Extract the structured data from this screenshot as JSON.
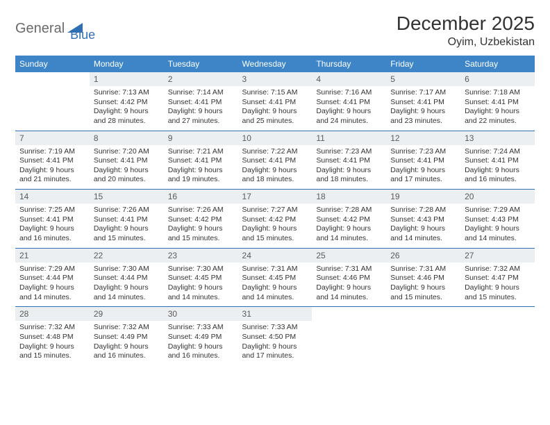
{
  "logo": {
    "text1": "General",
    "text2": "Blue"
  },
  "title": "December 2025",
  "location": "Oyim, Uzbekistan",
  "colors": {
    "header_bg": "#3d85c6",
    "header_text": "#ffffff",
    "daynum_bg": "#eceff1",
    "rule": "#2f6fb3",
    "body_text": "#333333"
  },
  "weekdays": [
    "Sunday",
    "Monday",
    "Tuesday",
    "Wednesday",
    "Thursday",
    "Friday",
    "Saturday"
  ],
  "weeks": [
    [
      {
        "n": "",
        "sr": "",
        "ss": "",
        "dl": ""
      },
      {
        "n": "1",
        "sr": "7:13 AM",
        "ss": "4:42 PM",
        "dl": "9 hours and 28 minutes."
      },
      {
        "n": "2",
        "sr": "7:14 AM",
        "ss": "4:41 PM",
        "dl": "9 hours and 27 minutes."
      },
      {
        "n": "3",
        "sr": "7:15 AM",
        "ss": "4:41 PM",
        "dl": "9 hours and 25 minutes."
      },
      {
        "n": "4",
        "sr": "7:16 AM",
        "ss": "4:41 PM",
        "dl": "9 hours and 24 minutes."
      },
      {
        "n": "5",
        "sr": "7:17 AM",
        "ss": "4:41 PM",
        "dl": "9 hours and 23 minutes."
      },
      {
        "n": "6",
        "sr": "7:18 AM",
        "ss": "4:41 PM",
        "dl": "9 hours and 22 minutes."
      }
    ],
    [
      {
        "n": "7",
        "sr": "7:19 AM",
        "ss": "4:41 PM",
        "dl": "9 hours and 21 minutes."
      },
      {
        "n": "8",
        "sr": "7:20 AM",
        "ss": "4:41 PM",
        "dl": "9 hours and 20 minutes."
      },
      {
        "n": "9",
        "sr": "7:21 AM",
        "ss": "4:41 PM",
        "dl": "9 hours and 19 minutes."
      },
      {
        "n": "10",
        "sr": "7:22 AM",
        "ss": "4:41 PM",
        "dl": "9 hours and 18 minutes."
      },
      {
        "n": "11",
        "sr": "7:23 AM",
        "ss": "4:41 PM",
        "dl": "9 hours and 18 minutes."
      },
      {
        "n": "12",
        "sr": "7:23 AM",
        "ss": "4:41 PM",
        "dl": "9 hours and 17 minutes."
      },
      {
        "n": "13",
        "sr": "7:24 AM",
        "ss": "4:41 PM",
        "dl": "9 hours and 16 minutes."
      }
    ],
    [
      {
        "n": "14",
        "sr": "7:25 AM",
        "ss": "4:41 PM",
        "dl": "9 hours and 16 minutes."
      },
      {
        "n": "15",
        "sr": "7:26 AM",
        "ss": "4:41 PM",
        "dl": "9 hours and 15 minutes."
      },
      {
        "n": "16",
        "sr": "7:26 AM",
        "ss": "4:42 PM",
        "dl": "9 hours and 15 minutes."
      },
      {
        "n": "17",
        "sr": "7:27 AM",
        "ss": "4:42 PM",
        "dl": "9 hours and 15 minutes."
      },
      {
        "n": "18",
        "sr": "7:28 AM",
        "ss": "4:42 PM",
        "dl": "9 hours and 14 minutes."
      },
      {
        "n": "19",
        "sr": "7:28 AM",
        "ss": "4:43 PM",
        "dl": "9 hours and 14 minutes."
      },
      {
        "n": "20",
        "sr": "7:29 AM",
        "ss": "4:43 PM",
        "dl": "9 hours and 14 minutes."
      }
    ],
    [
      {
        "n": "21",
        "sr": "7:29 AM",
        "ss": "4:44 PM",
        "dl": "9 hours and 14 minutes."
      },
      {
        "n": "22",
        "sr": "7:30 AM",
        "ss": "4:44 PM",
        "dl": "9 hours and 14 minutes."
      },
      {
        "n": "23",
        "sr": "7:30 AM",
        "ss": "4:45 PM",
        "dl": "9 hours and 14 minutes."
      },
      {
        "n": "24",
        "sr": "7:31 AM",
        "ss": "4:45 PM",
        "dl": "9 hours and 14 minutes."
      },
      {
        "n": "25",
        "sr": "7:31 AM",
        "ss": "4:46 PM",
        "dl": "9 hours and 14 minutes."
      },
      {
        "n": "26",
        "sr": "7:31 AM",
        "ss": "4:46 PM",
        "dl": "9 hours and 15 minutes."
      },
      {
        "n": "27",
        "sr": "7:32 AM",
        "ss": "4:47 PM",
        "dl": "9 hours and 15 minutes."
      }
    ],
    [
      {
        "n": "28",
        "sr": "7:32 AM",
        "ss": "4:48 PM",
        "dl": "9 hours and 15 minutes."
      },
      {
        "n": "29",
        "sr": "7:32 AM",
        "ss": "4:49 PM",
        "dl": "9 hours and 16 minutes."
      },
      {
        "n": "30",
        "sr": "7:33 AM",
        "ss": "4:49 PM",
        "dl": "9 hours and 16 minutes."
      },
      {
        "n": "31",
        "sr": "7:33 AM",
        "ss": "4:50 PM",
        "dl": "9 hours and 17 minutes."
      },
      {
        "n": "",
        "sr": "",
        "ss": "",
        "dl": ""
      },
      {
        "n": "",
        "sr": "",
        "ss": "",
        "dl": ""
      },
      {
        "n": "",
        "sr": "",
        "ss": "",
        "dl": ""
      }
    ]
  ],
  "labels": {
    "sunrise": "Sunrise: ",
    "sunset": "Sunset: ",
    "daylight": "Daylight: "
  }
}
